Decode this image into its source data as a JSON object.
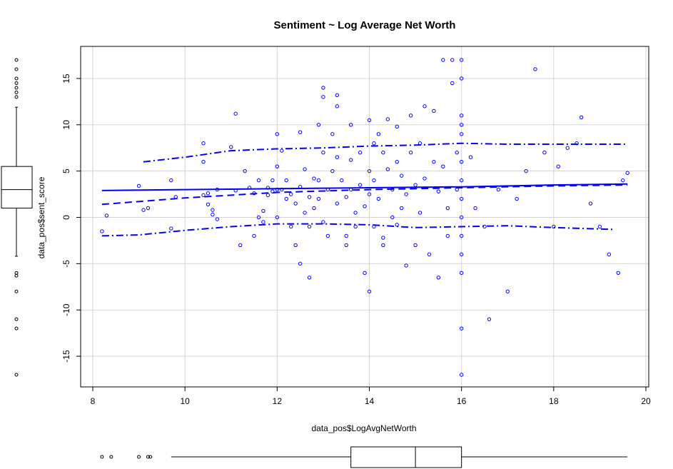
{
  "chart_data": {
    "type": "scatter",
    "title": "Sentiment ~ Log Average Net Worth",
    "xlabel": "data_pos$LogAvgNetWorth",
    "ylabel": "data_pos$sent_score",
    "xlim": [
      8,
      20
    ],
    "ylim": [
      -17,
      17
    ],
    "x_ticks": [
      8,
      10,
      12,
      14,
      16,
      18,
      20
    ],
    "y_ticks": [
      -15,
      -10,
      -5,
      0,
      5,
      10,
      15
    ],
    "grid": true,
    "colors": {
      "points": "#0000ff",
      "lines": "#0000ff",
      "grid": "#d3d3d3",
      "axis": "#000000"
    },
    "points": [
      [
        8.2,
        -1.5
      ],
      [
        8.3,
        0.2
      ],
      [
        9.0,
        3.4
      ],
      [
        9.1,
        0.8
      ],
      [
        9.2,
        1.0
      ],
      [
        9.7,
        -1.2
      ],
      [
        9.7,
        4.0
      ],
      [
        9.8,
        2.2
      ],
      [
        10.4,
        6.0
      ],
      [
        10.4,
        8.0
      ],
      [
        10.4,
        2.4
      ],
      [
        10.5,
        2.6
      ],
      [
        10.5,
        1.4
      ],
      [
        10.6,
        0.8
      ],
      [
        10.6,
        0.3
      ],
      [
        10.7,
        3.0
      ],
      [
        10.7,
        -0.2
      ],
      [
        11.0,
        7.6
      ],
      [
        11.1,
        11.2
      ],
      [
        11.1,
        2.9
      ],
      [
        11.2,
        -3.0
      ],
      [
        11.3,
        5.0
      ],
      [
        11.4,
        3.2
      ],
      [
        11.5,
        2.6
      ],
      [
        11.5,
        -2.0
      ],
      [
        11.6,
        0.0
      ],
      [
        11.6,
        4.0
      ],
      [
        11.7,
        0.7
      ],
      [
        11.7,
        -0.5
      ],
      [
        11.8,
        3.2
      ],
      [
        11.8,
        2.4
      ],
      [
        11.9,
        4.0
      ],
      [
        11.9,
        2.8
      ],
      [
        12.0,
        9.0
      ],
      [
        12.0,
        5.5
      ],
      [
        12.0,
        3.0
      ],
      [
        12.0,
        0.0
      ],
      [
        12.1,
        7.2
      ],
      [
        12.1,
        3.0
      ],
      [
        12.2,
        4.0
      ],
      [
        12.2,
        2.0
      ],
      [
        12.3,
        -1.0
      ],
      [
        12.3,
        2.5
      ],
      [
        12.4,
        1.5
      ],
      [
        12.4,
        -3.0
      ],
      [
        12.5,
        9.2
      ],
      [
        12.5,
        3.3
      ],
      [
        12.5,
        -5.0
      ],
      [
        12.6,
        0.5
      ],
      [
        12.6,
        5.2
      ],
      [
        12.7,
        2.2
      ],
      [
        12.7,
        -6.5
      ],
      [
        12.7,
        -1.0
      ],
      [
        12.8,
        4.2
      ],
      [
        12.8,
        1.0
      ],
      [
        12.9,
        10.0
      ],
      [
        12.9,
        4.0
      ],
      [
        12.9,
        2.0
      ],
      [
        13.0,
        14.0
      ],
      [
        13.0,
        13.0
      ],
      [
        13.0,
        7.0
      ],
      [
        13.0,
        -0.5
      ],
      [
        13.1,
        3.0
      ],
      [
        13.1,
        -2.0
      ],
      [
        13.2,
        9.0
      ],
      [
        13.2,
        5.0
      ],
      [
        13.3,
        13.2
      ],
      [
        13.3,
        12.0
      ],
      [
        13.3,
        6.5
      ],
      [
        13.3,
        1.5
      ],
      [
        13.4,
        4.0
      ],
      [
        13.5,
        -2.0
      ],
      [
        13.5,
        -3.0
      ],
      [
        13.5,
        2.2
      ],
      [
        13.6,
        10.0
      ],
      [
        13.6,
        6.2
      ],
      [
        13.6,
        3.0
      ],
      [
        13.7,
        0.5
      ],
      [
        13.7,
        -1.0
      ],
      [
        13.8,
        7.0
      ],
      [
        13.8,
        3.5
      ],
      [
        13.9,
        1.2
      ],
      [
        13.9,
        -6.0
      ],
      [
        14.0,
        10.5
      ],
      [
        14.0,
        5.0
      ],
      [
        14.0,
        2.5
      ],
      [
        14.0,
        -8.0
      ],
      [
        14.1,
        8.0
      ],
      [
        14.1,
        4.0
      ],
      [
        14.1,
        -1.0
      ],
      [
        14.2,
        9.0
      ],
      [
        14.2,
        2.0
      ],
      [
        14.3,
        7.0
      ],
      [
        14.3,
        -3.0
      ],
      [
        14.3,
        -2.2
      ],
      [
        14.4,
        10.6
      ],
      [
        14.4,
        5.2
      ],
      [
        14.5,
        3.0
      ],
      [
        14.5,
        0.0
      ],
      [
        14.6,
        9.8
      ],
      [
        14.6,
        6.0
      ],
      [
        14.6,
        -0.8
      ],
      [
        14.7,
        4.5
      ],
      [
        14.7,
        1.0
      ],
      [
        14.8,
        -5.2
      ],
      [
        14.8,
        2.5
      ],
      [
        14.9,
        11.0
      ],
      [
        14.9,
        7.0
      ],
      [
        15.0,
        3.5
      ],
      [
        15.0,
        -3.0
      ],
      [
        15.1,
        8.0
      ],
      [
        15.1,
        0.5
      ],
      [
        15.2,
        12.0
      ],
      [
        15.2,
        4.2
      ],
      [
        15.3,
        -4.0
      ],
      [
        15.4,
        11.5
      ],
      [
        15.4,
        6.0
      ],
      [
        15.5,
        2.8
      ],
      [
        15.5,
        -6.5
      ],
      [
        15.6,
        17.0
      ],
      [
        15.6,
        5.5
      ],
      [
        15.7,
        1.0
      ],
      [
        15.7,
        -2.0
      ],
      [
        15.8,
        14.5
      ],
      [
        15.8,
        17.0
      ],
      [
        15.9,
        7.0
      ],
      [
        15.9,
        3.0
      ],
      [
        16.0,
        9.0
      ],
      [
        16.0,
        10.0
      ],
      [
        16.0,
        11.0
      ],
      [
        16.0,
        6.0
      ],
      [
        16.0,
        -12.0
      ],
      [
        16.0,
        -17.0
      ],
      [
        16.0,
        -6.0
      ],
      [
        16.0,
        15.0
      ],
      [
        16.0,
        17.0
      ],
      [
        16.0,
        4.0
      ],
      [
        16.0,
        2.0
      ],
      [
        16.0,
        0.0
      ],
      [
        16.0,
        -2.0
      ],
      [
        16.0,
        -4.0
      ],
      [
        16.2,
        6.5
      ],
      [
        16.3,
        1.0
      ],
      [
        16.5,
        -1.0
      ],
      [
        16.6,
        -11.0
      ],
      [
        16.8,
        3.0
      ],
      [
        17.0,
        -8.0
      ],
      [
        17.2,
        2.0
      ],
      [
        17.4,
        5.0
      ],
      [
        17.6,
        16.0
      ],
      [
        17.8,
        7.0
      ],
      [
        18.0,
        -1.0
      ],
      [
        18.1,
        5.5
      ],
      [
        18.3,
        7.5
      ],
      [
        18.5,
        8.0
      ],
      [
        18.6,
        10.8
      ],
      [
        18.8,
        1.5
      ],
      [
        19.0,
        -1.0
      ],
      [
        19.2,
        -4.0
      ],
      [
        19.4,
        -6.0
      ],
      [
        19.5,
        4.0
      ],
      [
        19.6,
        4.8
      ]
    ],
    "smooth_line": [
      [
        8.2,
        2.9
      ],
      [
        10,
        3.0
      ],
      [
        12,
        3.1
      ],
      [
        14,
        3.2
      ],
      [
        16,
        3.3
      ],
      [
        18,
        3.5
      ],
      [
        19.6,
        3.6
      ]
    ],
    "dashed_line": [
      [
        8.2,
        1.4
      ],
      [
        10,
        2.1
      ],
      [
        12,
        2.7
      ],
      [
        14,
        3.0
      ],
      [
        16,
        3.2
      ],
      [
        18,
        3.4
      ],
      [
        19.6,
        3.5
      ]
    ],
    "dashdot_upper": [
      [
        9.1,
        6.0
      ],
      [
        10,
        6.5
      ],
      [
        11,
        7.2
      ],
      [
        12,
        7.4
      ],
      [
        13,
        7.5
      ],
      [
        14,
        7.7
      ],
      [
        15,
        7.8
      ],
      [
        16,
        8.0
      ],
      [
        17,
        7.9
      ],
      [
        18,
        7.9
      ],
      [
        19.6,
        7.9
      ]
    ],
    "dashdot_lower": [
      [
        8.2,
        -2.0
      ],
      [
        9,
        -1.9
      ],
      [
        10,
        -1.4
      ],
      [
        11,
        -1.0
      ],
      [
        12,
        -0.7
      ],
      [
        13,
        -0.7
      ],
      [
        14,
        -0.8
      ],
      [
        15,
        -1.1
      ],
      [
        16,
        -1.0
      ],
      [
        17,
        -0.9
      ],
      [
        18,
        -1.1
      ],
      [
        19.3,
        -1.3
      ]
    ],
    "x_boxplot": {
      "whisker_low": 9.7,
      "q1": 13.6,
      "median": 15.0,
      "q3": 16.0,
      "whisker_high": 19.6,
      "outliers": [
        8.2,
        8.4,
        9.0,
        9.2,
        9.25
      ]
    },
    "y_boxplot": {
      "whisker_low": -4.2,
      "q1": 1.0,
      "median": 3.0,
      "q3": 5.5,
      "whisker_high": 11.9,
      "outliers": [
        13,
        13.5,
        14,
        14.5,
        15,
        16,
        17,
        -6,
        -6.3,
        -8,
        -11,
        -12,
        -17
      ]
    }
  }
}
